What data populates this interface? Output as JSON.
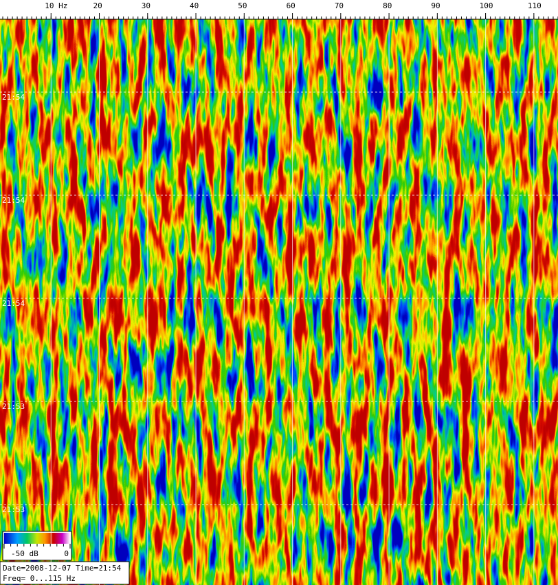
{
  "chart_data": {
    "type": "spectrogram",
    "xlim": [
      0,
      115
    ],
    "xticks": [
      {
        "value": 10,
        "label": "10 Hz"
      },
      20,
      30,
      40,
      50,
      60,
      70,
      80,
      90,
      100,
      110
    ],
    "xminor_step": 1,
    "grid": true,
    "time_labels": [
      "21:54",
      "21:54",
      "21:54",
      "21:53",
      "21:53"
    ],
    "colorbar": {
      "range": [
        -50,
        0
      ],
      "ticks": [
        {
          "value": -50,
          "label": "-50 dB"
        },
        0
      ]
    },
    "info": [
      "Date=2008-12-07 Time=21:54",
      "Freq= 0...115 Hz"
    ]
  }
}
